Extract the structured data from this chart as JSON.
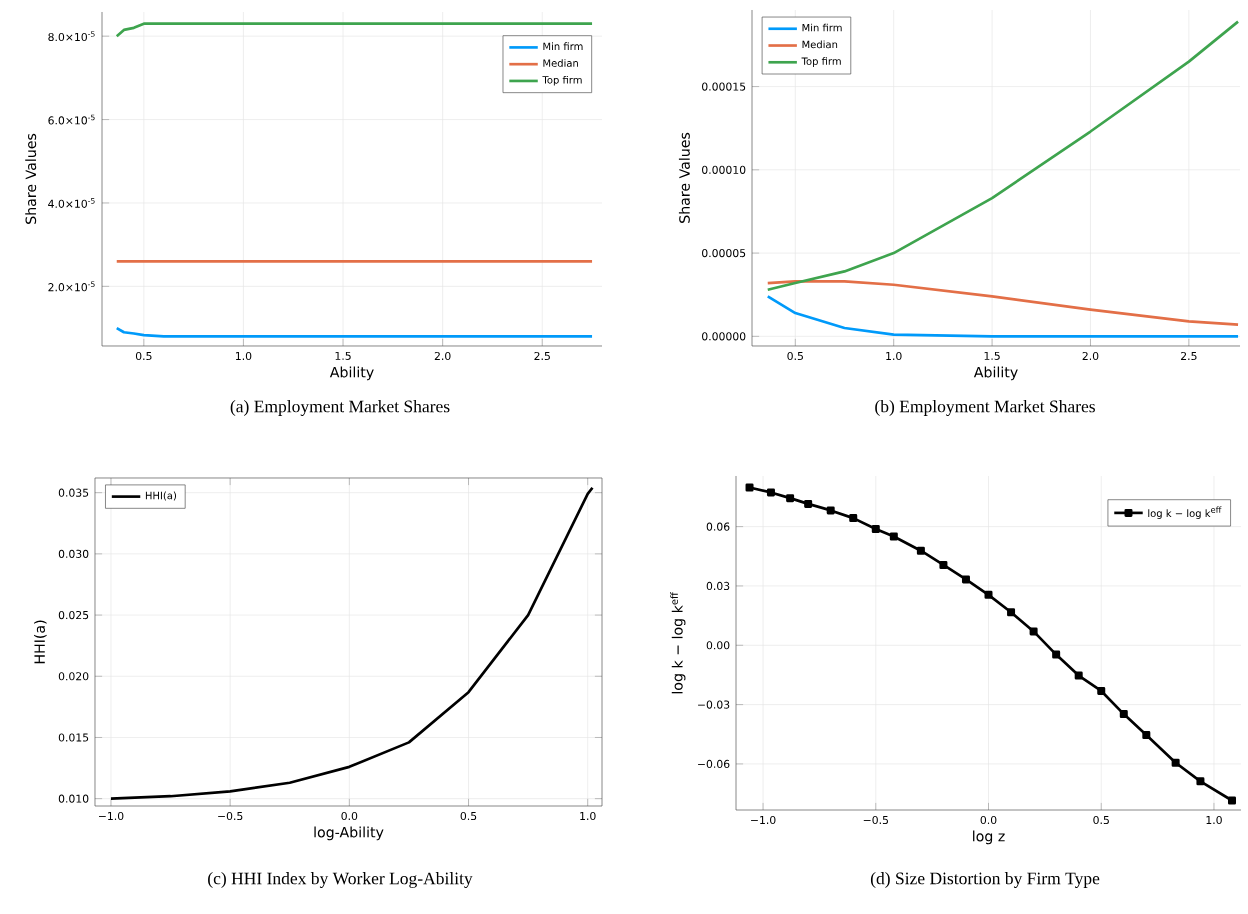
{
  "chart_data": [
    {
      "type": "line",
      "title": "(a) Employment Market Shares",
      "xlabel": "Ability",
      "ylabel": "Share Values",
      "legend": "top right",
      "grid": true,
      "x": [
        0.364,
        0.4,
        0.45,
        0.5,
        0.6,
        0.75,
        1.0,
        1.5,
        2.0,
        2.5,
        2.75
      ],
      "series": [
        {
          "name": "Min firm",
          "color": "#009afa",
          "values": [
            1e-05,
            9e-06,
            8.7e-06,
            8.3e-06,
            8e-06,
            8e-06,
            8e-06,
            8e-06,
            8e-06,
            8e-06,
            8e-06
          ]
        },
        {
          "name": "Median",
          "color": "#e36f47",
          "values": [
            2.6e-05,
            2.6e-05,
            2.6e-05,
            2.6e-05,
            2.6e-05,
            2.6e-05,
            2.6e-05,
            2.6e-05,
            2.6e-05,
            2.6e-05,
            2.6e-05
          ]
        },
        {
          "name": "Top firm",
          "color": "#3ea44e",
          "values": [
            8e-05,
            8.15e-05,
            8.2e-05,
            8.3e-05,
            8.3e-05,
            8.3e-05,
            8.3e-05,
            8.3e-05,
            8.3e-05,
            8.3e-05,
            8.3e-05
          ]
        }
      ],
      "xlim": [
        0.29,
        2.8
      ],
      "ylim": [
        5.7e-06,
        8.58e-05
      ],
      "xticks": [
        {
          "value": 0.5,
          "label": "0.5"
        },
        {
          "value": 1.0,
          "label": "1.0"
        },
        {
          "value": 1.5,
          "label": "1.5"
        },
        {
          "value": 2.0,
          "label": "2.0"
        },
        {
          "value": 2.5,
          "label": "2.5"
        }
      ],
      "yticks": [
        {
          "value": 2e-05,
          "label": "2.0×10$^{-5}$"
        },
        {
          "value": 4e-05,
          "label": "4.0×10$^{-5}$"
        },
        {
          "value": 6e-05,
          "label": "6.0×10$^{-5}$"
        },
        {
          "value": 8e-05,
          "label": "8.0×10$^{-5}$"
        }
      ]
    },
    {
      "type": "line",
      "title": "(b) Employment Market Shares",
      "xlabel": "Ability",
      "ylabel": "Share Values",
      "legend": "top left",
      "grid": true,
      "x": [
        0.36,
        0.5,
        0.75,
        1.0,
        1.5,
        2.0,
        2.5,
        2.75
      ],
      "series": [
        {
          "name": "Min firm",
          "color": "#009afa",
          "values": [
            2.4e-05,
            1.4e-05,
            5e-06,
            1e-06,
            0.0,
            0.0,
            0.0,
            0.0
          ]
        },
        {
          "name": "Median",
          "color": "#e36f47",
          "values": [
            3.2e-05,
            3.3e-05,
            3.3e-05,
            3.1e-05,
            2.4e-05,
            1.6e-05,
            9e-06,
            7e-06
          ]
        },
        {
          "name": "Top firm",
          "color": "#3ea44e",
          "values": [
            2.8e-05,
            3.2e-05,
            3.9e-05,
            5e-05,
            8.3e-05,
            0.000123,
            0.000165,
            0.000189
          ]
        }
      ],
      "xlim": [
        0.28,
        2.76
      ],
      "ylim": [
        -5.8e-06,
        0.000196
      ],
      "xticks": [
        {
          "value": 0.5,
          "label": "0.5"
        },
        {
          "value": 1.0,
          "label": "1.0"
        },
        {
          "value": 1.5,
          "label": "1.5"
        },
        {
          "value": 2.0,
          "label": "2.0"
        },
        {
          "value": 2.5,
          "label": "2.5"
        }
      ],
      "yticks": [
        {
          "value": 0,
          "label": "0.00000"
        },
        {
          "value": 5e-05,
          "label": "0.00005"
        },
        {
          "value": 0.0001,
          "label": "0.00010"
        },
        {
          "value": 0.00015,
          "label": "0.00015"
        }
      ]
    },
    {
      "type": "line",
      "title": "(c) HHI Index by Worker Log-Ability",
      "xlabel": "log-Ability",
      "ylabel": "HHI(a)",
      "legend": "top left",
      "grid": true,
      "x": [
        -1.0,
        -0.75,
        -0.5,
        -0.25,
        0.0,
        0.25,
        0.5,
        0.75,
        1.0,
        1.02
      ],
      "series": [
        {
          "name": "HHI(a)",
          "color": "#000000",
          "values": [
            0.01,
            0.0102,
            0.0106,
            0.0113,
            0.0126,
            0.0146,
            0.0187,
            0.025,
            0.0349,
            0.0354
          ]
        }
      ],
      "xlim": [
        -1.067,
        1.06
      ],
      "ylim": [
        0.0094,
        0.0362
      ],
      "xticks": [
        {
          "value": -1.0,
          "label": "−1.0"
        },
        {
          "value": -0.5,
          "label": "−0.5"
        },
        {
          "value": 0.0,
          "label": "0.0"
        },
        {
          "value": 0.5,
          "label": "0.5"
        },
        {
          "value": 1.0,
          "label": "1.0"
        }
      ],
      "yticks": [
        {
          "value": 0.01,
          "label": "0.010"
        },
        {
          "value": 0.015,
          "label": "0.015"
        },
        {
          "value": 0.02,
          "label": "0.020"
        },
        {
          "value": 0.025,
          "label": "0.025"
        },
        {
          "value": 0.03,
          "label": "0.030"
        },
        {
          "value": 0.035,
          "label": "0.035"
        }
      ]
    },
    {
      "type": "line",
      "title": "(d) Size Distortion by Firm Type",
      "xlabel": "log z",
      "ylabel": "log k − log k$^{eff}$",
      "legend": "top right",
      "grid": true,
      "marker": "square",
      "x": [
        -1.06,
        -0.965,
        -0.88,
        -0.8,
        -0.7,
        -0.6,
        -0.5,
        -0.42,
        -0.3,
        -0.2,
        -0.1,
        0.0,
        0.1,
        0.2,
        0.3,
        0.4,
        0.5,
        0.6,
        0.7,
        0.83,
        0.94,
        1.08
      ],
      "series": [
        {
          "name": "log k − log k$^{eff}$",
          "color": "#000000",
          "values": [
            0.0798,
            0.0773,
            0.0744,
            0.0715,
            0.0682,
            0.0643,
            0.0588,
            0.055,
            0.0478,
            0.0406,
            0.0333,
            0.0255,
            0.0167,
            0.007,
            -0.0047,
            -0.0153,
            -0.0231,
            -0.0348,
            -0.0454,
            -0.0594,
            -0.0688,
            -0.0785
          ]
        }
      ],
      "xlim": [
        -1.12,
        1.12
      ],
      "ylim": [
        -0.0833,
        0.0856
      ],
      "xticks": [
        {
          "value": -1.0,
          "label": "−1.0"
        },
        {
          "value": -0.5,
          "label": "−0.5"
        },
        {
          "value": 0.0,
          "label": "0.0"
        },
        {
          "value": 0.5,
          "label": "0.5"
        },
        {
          "value": 1.0,
          "label": "1.0"
        }
      ],
      "yticks": [
        {
          "value": -0.06,
          "label": "−0.06"
        },
        {
          "value": -0.03,
          "label": "−0.03"
        },
        {
          "value": 0.0,
          "label": "0.00"
        },
        {
          "value": 0.03,
          "label": "0.03"
        },
        {
          "value": 0.06,
          "label": "0.06"
        }
      ]
    }
  ]
}
